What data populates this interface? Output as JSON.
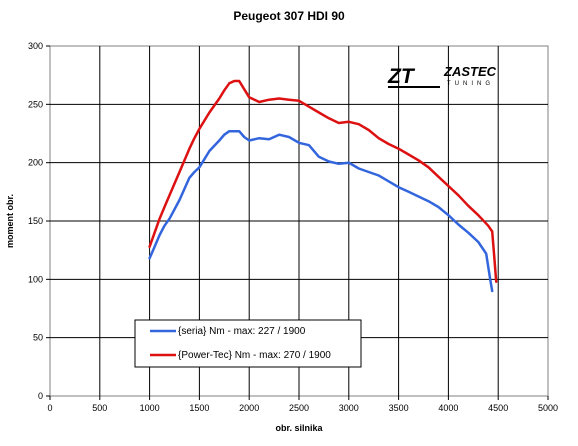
{
  "chart_data": {
    "type": "line",
    "title": "Peugeot 307 HDI 90",
    "xlabel": "obr. silnika",
    "ylabel": "moment obr.",
    "xlim": [
      0,
      5000
    ],
    "ylim": [
      0,
      300
    ],
    "xticks": [
      0,
      500,
      1000,
      1500,
      2000,
      2500,
      3000,
      3500,
      4000,
      4500,
      5000
    ],
    "yticks": [
      0,
      50,
      100,
      150,
      200,
      250,
      300
    ],
    "grid": true,
    "legend_position": "bottom-left",
    "series": [
      {
        "name": "{seria} Nm - max: 227 / 1900",
        "color": "#3366dd",
        "x": [
          1000,
          1050,
          1100,
          1150,
          1200,
          1300,
          1400,
          1450,
          1500,
          1600,
          1700,
          1750,
          1800,
          1850,
          1900,
          1950,
          2000,
          2100,
          2200,
          2300,
          2400,
          2500,
          2600,
          2700,
          2800,
          2900,
          3000,
          3100,
          3200,
          3300,
          3400,
          3500,
          3600,
          3700,
          3800,
          3900,
          4000,
          4100,
          4200,
          4300,
          4380,
          4420,
          4440
        ],
        "y": [
          118,
          128,
          138,
          146,
          152,
          168,
          187,
          192,
          196,
          210,
          219,
          224,
          227,
          227,
          227,
          222,
          219,
          221,
          220,
          224,
          222,
          217,
          215,
          205,
          201,
          199,
          200,
          195,
          192,
          189,
          184,
          179,
          175,
          171,
          167,
          162,
          155,
          147,
          140,
          132,
          122,
          100,
          90
        ],
        "color_role": "stock"
      },
      {
        "name": "{Power-Tec} Nm - max: 270 / 1900",
        "color": "#dd1111",
        "x": [
          1000,
          1050,
          1100,
          1150,
          1200,
          1300,
          1400,
          1450,
          1500,
          1600,
          1700,
          1750,
          1800,
          1850,
          1900,
          1950,
          2000,
          2100,
          2200,
          2300,
          2400,
          2500,
          2600,
          2700,
          2800,
          2900,
          3000,
          3100,
          3200,
          3300,
          3400,
          3500,
          3600,
          3700,
          3800,
          3900,
          4000,
          4100,
          4200,
          4300,
          4400,
          4440,
          4460,
          4480
        ],
        "y": [
          128,
          140,
          152,
          162,
          172,
          192,
          212,
          221,
          229,
          243,
          255,
          262,
          268,
          270,
          270,
          263,
          256,
          252,
          254,
          255,
          254,
          253,
          248,
          243,
          238,
          234,
          235,
          233,
          228,
          221,
          216,
          212,
          207,
          202,
          196,
          188,
          180,
          172,
          163,
          155,
          146,
          141,
          120,
          98
        ]
      }
    ]
  },
  "logo": {
    "mark": "ZT",
    "name": "ZASTEC",
    "sub": "TUNING"
  }
}
